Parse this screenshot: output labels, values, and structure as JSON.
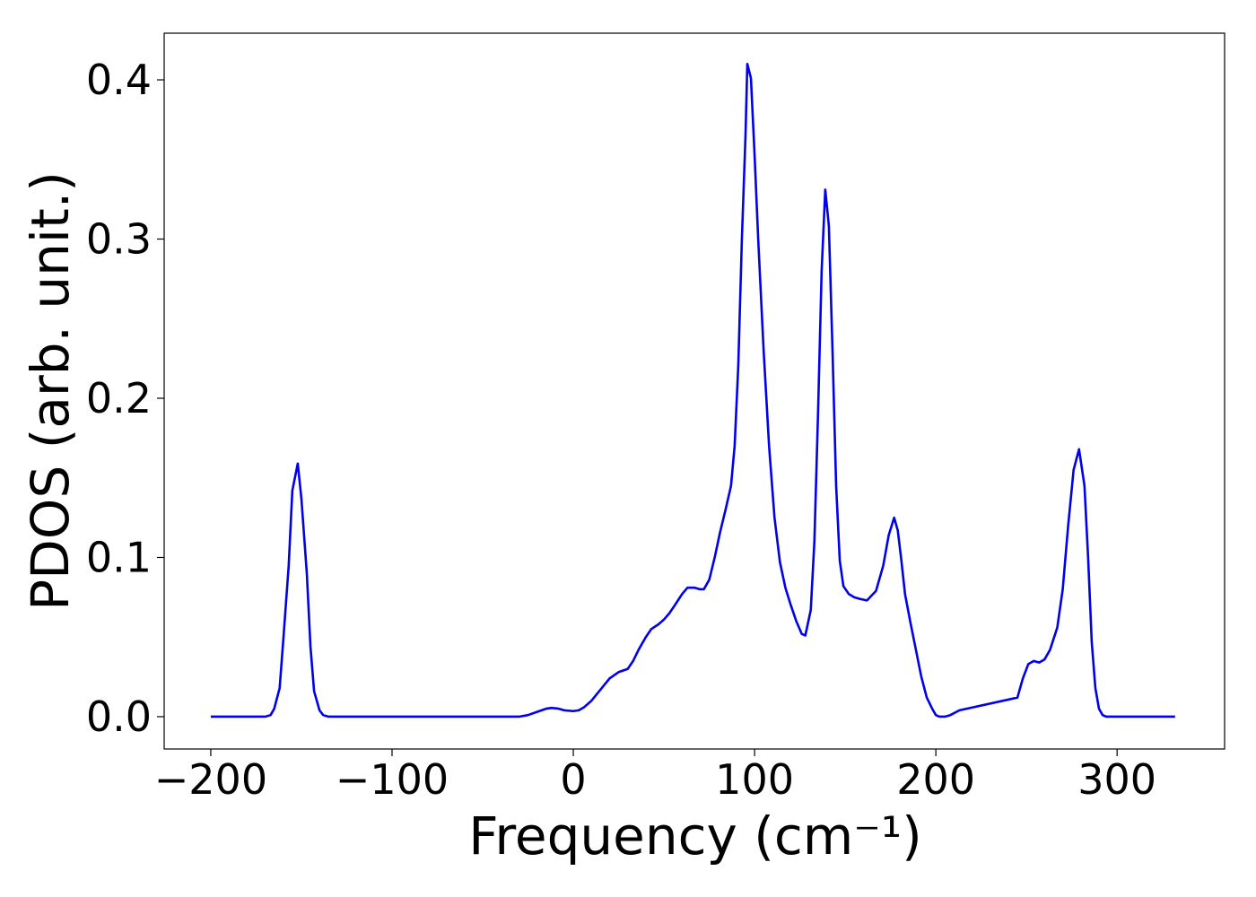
{
  "chart_data": {
    "type": "line",
    "xlabel": "Frequency (cm⁻¹)",
    "ylabel": "PDOS (arb. unit.)",
    "xlim": [
      -225.7,
      359.3
    ],
    "ylim": [
      -0.0203,
      0.4293
    ],
    "xticks": [
      {
        "value": -200,
        "label": "−200"
      },
      {
        "value": -100,
        "label": "−100"
      },
      0,
      100,
      200,
      300
    ],
    "yticks": [
      {
        "value": 0,
        "label": "0.0"
      },
      0.1,
      0.2,
      0.3,
      0.4
    ],
    "grid": false,
    "series": [
      {
        "name": "PDOS",
        "color": "#0000ee",
        "x": [
          -200,
          -170,
          -167,
          -165,
          -162,
          -160,
          -157,
          -155,
          -152,
          -150,
          -147,
          -145,
          -143,
          -140,
          -138,
          -135,
          -30,
          -25,
          -20,
          -15,
          -12,
          -8,
          -5,
          0,
          3,
          6,
          10,
          15,
          20,
          25,
          30,
          33,
          36,
          40,
          43,
          47,
          50,
          53,
          56,
          60,
          63,
          67,
          70,
          72,
          75,
          78,
          81,
          84,
          87,
          89,
          91,
          93,
          95,
          96,
          98,
          100,
          102,
          105,
          108,
          111,
          114,
          117,
          120,
          123,
          126,
          128,
          131,
          133,
          135,
          137,
          139,
          141,
          143,
          145,
          147,
          149,
          152,
          155,
          158,
          162,
          167,
          171,
          174,
          177,
          179,
          181,
          183,
          186,
          189,
          192,
          195,
          198,
          200,
          202,
          205,
          208,
          213,
          245,
          248,
          251,
          254,
          257,
          260,
          263,
          267,
          270,
          273,
          276,
          279,
          282,
          284,
          286,
          288,
          290,
          292,
          294,
          296,
          298,
          301,
          332
        ],
        "values": [
          0,
          0,
          0.001,
          0.005,
          0.018,
          0.048,
          0.095,
          0.142,
          0.159,
          0.137,
          0.09,
          0.044,
          0.016,
          0.004,
          0.001,
          0,
          0,
          0.001,
          0.003,
          0.005,
          0.0055,
          0.005,
          0.004,
          0.0035,
          0.004,
          0.006,
          0.01,
          0.017,
          0.024,
          0.028,
          0.03,
          0.035,
          0.042,
          0.05,
          0.055,
          0.058,
          0.061,
          0.065,
          0.07,
          0.077,
          0.081,
          0.081,
          0.08,
          0.08,
          0.086,
          0.1,
          0.116,
          0.13,
          0.145,
          0.17,
          0.22,
          0.3,
          0.365,
          0.41,
          0.401,
          0.353,
          0.3,
          0.23,
          0.17,
          0.125,
          0.097,
          0.081,
          0.07,
          0.06,
          0.052,
          0.051,
          0.067,
          0.11,
          0.19,
          0.28,
          0.331,
          0.308,
          0.23,
          0.145,
          0.098,
          0.082,
          0.077,
          0.075,
          0.074,
          0.073,
          0.079,
          0.095,
          0.114,
          0.125,
          0.117,
          0.098,
          0.077,
          0.059,
          0.042,
          0.025,
          0.012,
          0.005,
          0.001,
          0,
          0,
          0.001,
          0.004,
          0.012,
          0.024,
          0.033,
          0.035,
          0.034,
          0.036,
          0.042,
          0.056,
          0.08,
          0.12,
          0.155,
          0.168,
          0.145,
          0.1,
          0.047,
          0.018,
          0.005,
          0.001,
          0,
          0,
          0,
          0,
          0
        ]
      }
    ]
  }
}
